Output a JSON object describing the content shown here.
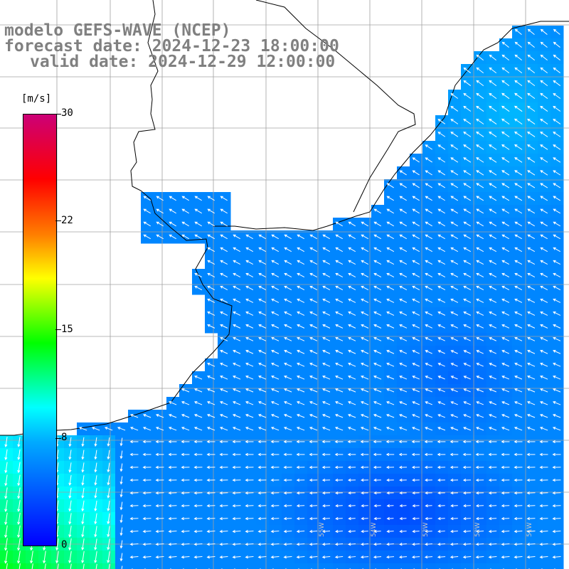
{
  "title": {
    "line1": "modelo GEFS-WAVE (NCEP)",
    "line2": "forecast date: 2024-12-23 18:00:00",
    "line3": "valid date: 2024-12-29 12:00:00"
  },
  "colorbar": {
    "unit": "[m/s]",
    "ticks": [
      "30",
      "22",
      "15",
      "8",
      "0"
    ],
    "tick_values": [
      30,
      22,
      15,
      8,
      0
    ],
    "range": [
      0,
      30
    ],
    "colors": [
      "#0000ff",
      "#00aaff",
      "#00ffff",
      "#00ff00",
      "#ffff00",
      "#ff8000",
      "#ff0000",
      "#cc0077"
    ]
  },
  "map": {
    "lon_labels": [
      "55W",
      "54W",
      "53W",
      "52W",
      "51W"
    ],
    "land_color": "#ffffff",
    "coast_color": "#000000",
    "grid_color": "#a0a0a0",
    "arrow_color": "#ffffff",
    "wind_direction": "mostly from east/northeast, arrows pointing west/southwest"
  }
}
